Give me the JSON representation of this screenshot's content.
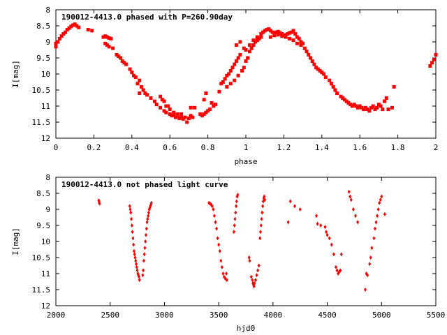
{
  "chart_data": [
    {
      "type": "scatter",
      "title": "190012-4413.0 phased with P=260.90day",
      "xlabel": "phase",
      "ylabel": "I[mag]",
      "xlim": [
        0,
        2
      ],
      "ylim": [
        12,
        8
      ],
      "y_inverted": true,
      "grid": false,
      "legend": "none",
      "marker_color": "#ff0000",
      "marker": "filled-square",
      "x_ticks": [
        "0",
        "0.2",
        "0.4",
        "0.6",
        "0.8",
        "1",
        "1.2",
        "1.4",
        "1.6",
        "1.8",
        "2"
      ],
      "y_ticks": [
        "8",
        "8.5",
        "9",
        "9.5",
        "10",
        "10.5",
        "11",
        "11.5",
        "12"
      ],
      "points": [
        [
          0.0,
          9.15
        ],
        [
          0.0,
          9.05
        ],
        [
          0.01,
          9.0
        ],
        [
          0.02,
          8.9
        ],
        [
          0.03,
          8.82
        ],
        [
          0.04,
          8.75
        ],
        [
          0.05,
          8.7
        ],
        [
          0.06,
          8.62
        ],
        [
          0.07,
          8.57
        ],
        [
          0.08,
          8.52
        ],
        [
          0.09,
          8.48
        ],
        [
          0.1,
          8.45
        ],
        [
          0.11,
          8.5
        ],
        [
          0.12,
          8.55
        ],
        [
          0.17,
          8.62
        ],
        [
          0.19,
          8.65
        ],
        [
          0.25,
          8.85
        ],
        [
          0.26,
          8.82
        ],
        [
          0.27,
          8.85
        ],
        [
          0.28,
          8.88
        ],
        [
          0.29,
          8.9
        ],
        [
          0.26,
          9.05
        ],
        [
          0.27,
          9.1
        ],
        [
          0.28,
          9.15
        ],
        [
          0.3,
          9.2
        ],
        [
          0.32,
          9.4
        ],
        [
          0.33,
          9.45
        ],
        [
          0.34,
          9.5
        ],
        [
          0.35,
          9.6
        ],
        [
          0.36,
          9.65
        ],
        [
          0.37,
          9.7
        ],
        [
          0.39,
          9.85
        ],
        [
          0.4,
          9.95
        ],
        [
          0.41,
          10.05
        ],
        [
          0.42,
          10.1
        ],
        [
          0.44,
          10.2
        ],
        [
          0.45,
          10.4
        ],
        [
          0.46,
          10.5
        ],
        [
          0.47,
          10.6
        ],
        [
          0.48,
          10.65
        ],
        [
          0.5,
          10.75
        ],
        [
          0.44,
          10.6
        ],
        [
          0.43,
          10.3
        ],
        [
          0.52,
          10.85
        ],
        [
          0.53,
          10.95
        ],
        [
          0.55,
          11.05
        ],
        [
          0.57,
          11.15
        ],
        [
          0.58,
          11.2
        ],
        [
          0.6,
          11.25
        ],
        [
          0.61,
          11.3
        ],
        [
          0.62,
          11.28
        ],
        [
          0.63,
          11.35
        ],
        [
          0.64,
          11.3
        ],
        [
          0.65,
          11.38
        ],
        [
          0.66,
          11.32
        ],
        [
          0.67,
          11.4
        ],
        [
          0.68,
          11.35
        ],
        [
          0.69,
          11.5
        ],
        [
          0.7,
          11.38
        ],
        [
          0.71,
          11.3
        ],
        [
          0.72,
          11.35
        ],
        [
          0.6,
          11.1
        ],
        [
          0.58,
          11.0
        ],
        [
          0.56,
          10.8
        ],
        [
          0.55,
          10.7
        ],
        [
          0.57,
          10.85
        ],
        [
          0.59,
          11.0
        ],
        [
          0.62,
          11.2
        ],
        [
          0.64,
          11.25
        ],
        [
          0.66,
          11.25
        ],
        [
          0.71,
          11.05
        ],
        [
          0.73,
          11.05
        ],
        [
          0.76,
          11.25
        ],
        [
          0.77,
          11.3
        ],
        [
          0.78,
          11.25
        ],
        [
          0.79,
          11.2
        ],
        [
          0.8,
          11.15
        ],
        [
          0.81,
          11.1
        ],
        [
          0.83,
          11.0
        ],
        [
          0.84,
          10.95
        ],
        [
          0.78,
          10.8
        ],
        [
          0.79,
          10.6
        ],
        [
          0.82,
          10.9
        ],
        [
          0.86,
          10.55
        ],
        [
          0.87,
          10.3
        ],
        [
          0.88,
          10.25
        ],
        [
          0.89,
          10.15
        ],
        [
          0.9,
          10.05
        ],
        [
          0.91,
          10.0
        ],
        [
          0.92,
          9.9
        ],
        [
          0.93,
          9.8
        ],
        [
          0.94,
          9.7
        ],
        [
          0.95,
          9.6
        ],
        [
          0.96,
          9.5
        ],
        [
          0.97,
          9.4
        ],
        [
          0.9,
          10.4
        ],
        [
          0.92,
          10.3
        ],
        [
          0.94,
          10.2
        ],
        [
          0.96,
          10.05
        ],
        [
          0.98,
          9.9
        ],
        [
          0.99,
          9.8
        ],
        [
          1.0,
          9.6
        ],
        [
          1.01,
          9.5
        ],
        [
          1.02,
          9.3
        ],
        [
          1.03,
          9.2
        ],
        [
          1.04,
          9.1
        ],
        [
          1.05,
          9.0
        ],
        [
          1.06,
          8.95
        ],
        [
          1.07,
          8.9
        ],
        [
          1.08,
          8.85
        ],
        [
          0.99,
          9.2
        ],
        [
          0.97,
          9.0
        ],
        [
          0.95,
          9.1
        ],
        [
          1.0,
          9.25
        ],
        [
          1.02,
          9.1
        ],
        [
          1.04,
          8.95
        ],
        [
          1.06,
          8.85
        ],
        [
          1.08,
          8.75
        ],
        [
          1.09,
          8.7
        ],
        [
          1.1,
          8.65
        ],
        [
          1.11,
          8.62
        ],
        [
          1.12,
          8.6
        ],
        [
          1.13,
          8.65
        ],
        [
          1.14,
          8.7
        ],
        [
          1.15,
          8.72
        ],
        [
          1.16,
          8.7
        ],
        [
          1.17,
          8.68
        ],
        [
          1.18,
          8.72
        ],
        [
          1.19,
          8.75
        ],
        [
          1.2,
          8.8
        ],
        [
          1.21,
          8.78
        ],
        [
          1.22,
          8.75
        ],
        [
          1.23,
          8.72
        ],
        [
          1.24,
          8.7
        ],
        [
          1.25,
          8.65
        ],
        [
          1.26,
          8.75
        ],
        [
          1.27,
          8.85
        ],
        [
          1.28,
          8.9
        ],
        [
          1.29,
          9.0
        ],
        [
          1.3,
          9.05
        ],
        [
          1.13,
          8.85
        ],
        [
          1.15,
          8.8
        ],
        [
          1.17,
          8.78
        ],
        [
          1.19,
          8.82
        ],
        [
          1.21,
          8.85
        ],
        [
          1.23,
          8.9
        ],
        [
          1.25,
          8.95
        ],
        [
          1.27,
          9.05
        ],
        [
          1.29,
          9.1
        ],
        [
          1.31,
          9.2
        ],
        [
          1.32,
          9.3
        ],
        [
          1.33,
          9.4
        ],
        [
          1.34,
          9.5
        ],
        [
          1.35,
          9.6
        ],
        [
          1.36,
          9.7
        ],
        [
          1.37,
          9.8
        ],
        [
          1.38,
          9.85
        ],
        [
          1.39,
          9.9
        ],
        [
          1.4,
          9.95
        ],
        [
          1.41,
          10.0
        ],
        [
          1.42,
          10.1
        ],
        [
          1.44,
          10.2
        ],
        [
          1.45,
          10.3
        ],
        [
          1.46,
          10.4
        ],
        [
          1.47,
          10.5
        ],
        [
          1.48,
          10.6
        ],
        [
          1.5,
          10.7
        ],
        [
          1.51,
          10.75
        ],
        [
          1.52,
          10.8
        ],
        [
          1.53,
          10.85
        ],
        [
          1.54,
          10.9
        ],
        [
          1.55,
          10.95
        ],
        [
          1.56,
          11.0
        ],
        [
          1.57,
          10.95
        ],
        [
          1.58,
          11.0
        ],
        [
          1.59,
          11.05
        ],
        [
          1.6,
          11.0
        ],
        [
          1.61,
          11.05
        ],
        [
          1.62,
          11.1
        ],
        [
          1.63,
          11.05
        ],
        [
          1.64,
          11.1
        ],
        [
          1.65,
          11.15
        ],
        [
          1.66,
          11.05
        ],
        [
          1.67,
          11.0
        ],
        [
          1.68,
          11.1
        ],
        [
          1.69,
          11.05
        ],
        [
          1.7,
          10.95
        ],
        [
          1.71,
          11.0
        ],
        [
          1.72,
          11.1
        ],
        [
          1.73,
          10.85
        ],
        [
          1.74,
          10.75
        ],
        [
          1.75,
          11.1
        ],
        [
          1.77,
          11.05
        ],
        [
          1.78,
          10.4
        ],
        [
          1.97,
          9.75
        ],
        [
          1.98,
          9.65
        ],
        [
          1.99,
          9.55
        ],
        [
          2.0,
          9.4
        ]
      ]
    },
    {
      "type": "scatter",
      "title": "190012-4413.0 not phased light curve",
      "xlabel": "hjd0",
      "ylabel": "I[mag]",
      "xlim": [
        2000,
        5500
      ],
      "ylim": [
        12,
        8
      ],
      "y_inverted": true,
      "grid": false,
      "legend": "none",
      "marker_color": "#ff0000",
      "marker": "filled-diamond",
      "x_ticks": [
        "2000",
        "2500",
        "3000",
        "3500",
        "4000",
        "4500",
        "5000",
        "5500"
      ],
      "y_ticks": [
        "8",
        "8.5",
        "9",
        "9.5",
        "10",
        "10.5",
        "11",
        "11.5",
        "12"
      ],
      "points": [
        [
          2395,
          8.72
        ],
        [
          2398,
          8.75
        ],
        [
          2400,
          8.8
        ],
        [
          2402,
          8.82
        ],
        [
          2680,
          8.9
        ],
        [
          2685,
          9.0
        ],
        [
          2690,
          9.1
        ],
        [
          2695,
          9.3
        ],
        [
          2700,
          9.5
        ],
        [
          2705,
          9.7
        ],
        [
          2710,
          9.9
        ],
        [
          2715,
          10.1
        ],
        [
          2720,
          10.3
        ],
        [
          2725,
          10.4
        ],
        [
          2730,
          10.5
        ],
        [
          2735,
          10.6
        ],
        [
          2740,
          10.7
        ],
        [
          2745,
          10.8
        ],
        [
          2750,
          10.9
        ],
        [
          2755,
          11.0
        ],
        [
          2760,
          11.05
        ],
        [
          2765,
          11.1
        ],
        [
          2770,
          11.2
        ],
        [
          2800,
          11.05
        ],
        [
          2805,
          10.9
        ],
        [
          2810,
          10.6
        ],
        [
          2815,
          10.4
        ],
        [
          2820,
          10.2
        ],
        [
          2825,
          10.0
        ],
        [
          2830,
          9.8
        ],
        [
          2835,
          9.6
        ],
        [
          2840,
          9.4
        ],
        [
          2845,
          9.3
        ],
        [
          2850,
          9.2
        ],
        [
          2855,
          9.1
        ],
        [
          2860,
          9.0
        ],
        [
          2865,
          8.95
        ],
        [
          2870,
          8.9
        ],
        [
          2875,
          8.85
        ],
        [
          2880,
          8.8
        ],
        [
          3410,
          8.8
        ],
        [
          3420,
          8.82
        ],
        [
          3430,
          8.85
        ],
        [
          3440,
          8.9
        ],
        [
          3450,
          9.0
        ],
        [
          3460,
          9.2
        ],
        [
          3470,
          9.4
        ],
        [
          3480,
          9.6
        ],
        [
          3490,
          9.9
        ],
        [
          3500,
          10.1
        ],
        [
          3510,
          10.3
        ],
        [
          3520,
          10.6
        ],
        [
          3530,
          10.8
        ],
        [
          3540,
          11.0
        ],
        [
          3550,
          11.1
        ],
        [
          3560,
          11.15
        ],
        [
          3570,
          11.0
        ],
        [
          3575,
          11.2
        ],
        [
          3640,
          9.7
        ],
        [
          3645,
          9.5
        ],
        [
          3650,
          9.3
        ],
        [
          3655,
          9.1
        ],
        [
          3660,
          8.9
        ],
        [
          3665,
          8.75
        ],
        [
          3670,
          8.6
        ],
        [
          3675,
          8.55
        ],
        [
          3780,
          10.5
        ],
        [
          3785,
          10.6
        ],
        [
          3800,
          11.1
        ],
        [
          3810,
          11.2
        ],
        [
          3815,
          11.3
        ],
        [
          3820,
          11.35
        ],
        [
          3825,
          11.4
        ],
        [
          3830,
          11.3
        ],
        [
          3840,
          11.2
        ],
        [
          3850,
          11.05
        ],
        [
          3860,
          10.9
        ],
        [
          3870,
          10.75
        ],
        [
          3880,
          9.9
        ],
        [
          3885,
          9.7
        ],
        [
          3890,
          9.5
        ],
        [
          3895,
          9.3
        ],
        [
          3900,
          9.1
        ],
        [
          3905,
          8.9
        ],
        [
          3910,
          8.75
        ],
        [
          3915,
          8.65
        ],
        [
          3920,
          8.6
        ],
        [
          3925,
          8.7
        ],
        [
          4140,
          9.4
        ],
        [
          4160,
          8.75
        ],
        [
          4200,
          8.9
        ],
        [
          4250,
          9.0
        ],
        [
          4400,
          9.2
        ],
        [
          4410,
          9.45
        ],
        [
          4440,
          9.5
        ],
        [
          4480,
          9.55
        ],
        [
          4490,
          9.7
        ],
        [
          4500,
          9.8
        ],
        [
          4520,
          9.9
        ],
        [
          4540,
          10.1
        ],
        [
          4560,
          10.4
        ],
        [
          4580,
          10.8
        ],
        [
          4590,
          10.9
        ],
        [
          4600,
          11.0
        ],
        [
          4610,
          10.95
        ],
        [
          4620,
          10.9
        ],
        [
          4630,
          10.4
        ],
        [
          4700,
          8.45
        ],
        [
          4710,
          8.6
        ],
        [
          4720,
          8.7
        ],
        [
          4740,
          9.0
        ],
        [
          4760,
          9.2
        ],
        [
          4780,
          9.4
        ],
        [
          4850,
          11.5
        ],
        [
          4860,
          11.0
        ],
        [
          4870,
          11.05
        ],
        [
          4890,
          10.7
        ],
        [
          4900,
          10.5
        ],
        [
          4910,
          10.2
        ],
        [
          4930,
          9.9
        ],
        [
          4940,
          9.6
        ],
        [
          4950,
          9.4
        ],
        [
          4960,
          9.2
        ],
        [
          4970,
          9.0
        ],
        [
          4980,
          8.8
        ],
        [
          4990,
          8.7
        ],
        [
          5000,
          8.6
        ],
        [
          5030,
          9.15
        ]
      ]
    }
  ]
}
